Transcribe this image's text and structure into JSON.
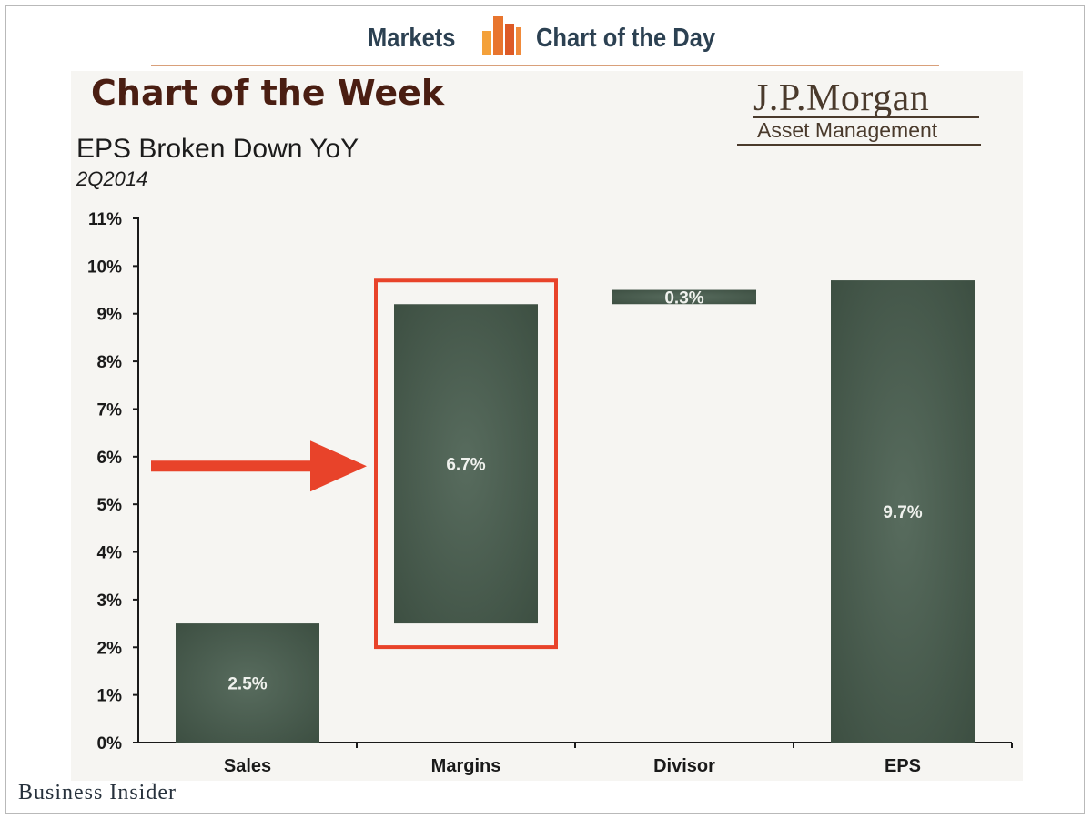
{
  "header": {
    "left_label": "Markets",
    "right_label": "Chart of the Day"
  },
  "panel": {
    "title": "Chart of the Week",
    "brand_name": "J.P.Morgan",
    "brand_sub": "Asset Management"
  },
  "footer": {
    "publisher": "Business Insider"
  },
  "colors": {
    "bar": "#4b5f51",
    "highlight": "#e8432a",
    "header_text": "#2c4152",
    "panel_bg": "#f6f5f2"
  },
  "chart_data": {
    "type": "bar",
    "title": "EPS Broken Down YoY",
    "subtitle": "2Q2014",
    "categories": [
      "Sales",
      "Margins",
      "Divisor",
      "EPS"
    ],
    "series": [
      {
        "values": [
          2.5,
          6.7,
          0.3,
          9.7
        ],
        "bases": [
          0,
          2.5,
          9.2,
          0
        ],
        "labels": [
          "2.5%",
          "6.7%",
          "0.3%",
          "9.7%"
        ]
      }
    ],
    "yticks": [
      "0%",
      "1%",
      "2%",
      "3%",
      "4%",
      "5%",
      "6%",
      "7%",
      "8%",
      "9%",
      "10%",
      "11%"
    ],
    "ylim": [
      0,
      11
    ],
    "xlabel": "",
    "ylabel": "",
    "highlight": {
      "category": "Margins",
      "arrow": true
    },
    "grid": false,
    "legend": "none"
  }
}
